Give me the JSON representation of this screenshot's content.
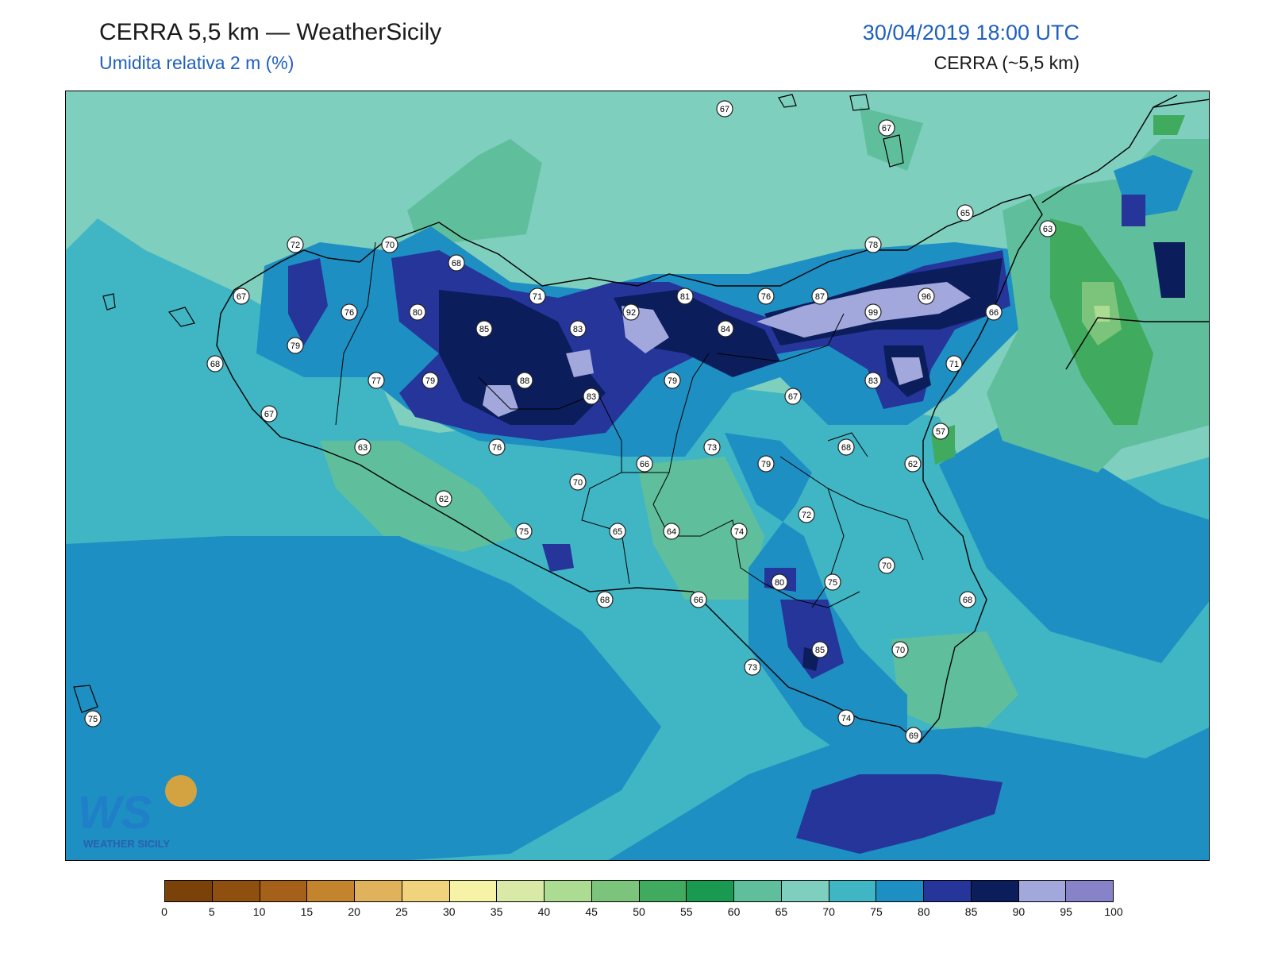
{
  "header": {
    "title": "CERRA 5,5 km — WeatherSicily",
    "subtitle": "Umidita relativa 2 m (%)",
    "datetime": "30/04/2019 18:00 UTC",
    "model": "CERRA (~5,5 km)"
  },
  "logo": {
    "letters": "WS",
    "name": "WEATHER SICILY"
  },
  "colorbar": {
    "ticks": [
      "0",
      "5",
      "10",
      "15",
      "20",
      "25",
      "30",
      "35",
      "40",
      "45",
      "50",
      "55",
      "60",
      "65",
      "70",
      "75",
      "80",
      "85",
      "90",
      "95",
      "100"
    ],
    "colors": [
      "#7a4208",
      "#8f4f0e",
      "#a5601a",
      "#c4832d",
      "#e0b25c",
      "#f0d37c",
      "#f6f3a6",
      "#d8eaa6",
      "#acdb92",
      "#7cc47c",
      "#40aa5e",
      "#1a9950",
      "#5fbf9c",
      "#7ecfbd",
      "#40b5c4",
      "#1e8fc3",
      "#25359a",
      "#0c1d5c",
      "#a2a8dc",
      "#8883c8"
    ]
  },
  "stations": [
    {
      "value": "67",
      "color": "#000"
    },
    {
      "value": "67",
      "color": "#000"
    },
    {
      "value": "65",
      "color": "#000"
    },
    {
      "value": "63",
      "color": "#000"
    },
    {
      "value": "72",
      "color": "#000"
    },
    {
      "value": "70",
      "color": "#000"
    },
    {
      "value": "68",
      "color": "#000"
    },
    {
      "value": "78",
      "color": "#000"
    },
    {
      "value": "67",
      "color": "#000"
    },
    {
      "value": "76",
      "color": "#000"
    },
    {
      "value": "80",
      "color": "#000"
    },
    {
      "value": "71",
      "color": "#000"
    },
    {
      "value": "81",
      "color": "#000"
    },
    {
      "value": "76",
      "color": "#000"
    },
    {
      "value": "87",
      "color": "#000"
    },
    {
      "value": "96",
      "color": "#000"
    },
    {
      "value": "66",
      "color": "#000"
    },
    {
      "value": "92",
      "color": "#000"
    },
    {
      "value": "99",
      "color": "#000"
    },
    {
      "value": "85",
      "color": "#000"
    },
    {
      "value": "83",
      "color": "#000"
    },
    {
      "value": "84",
      "color": "#000"
    },
    {
      "value": "79",
      "color": "#000"
    },
    {
      "value": "68",
      "color": "#000"
    },
    {
      "value": "71",
      "color": "#000"
    },
    {
      "value": "77",
      "color": "#000"
    },
    {
      "value": "79",
      "color": "#000"
    },
    {
      "value": "88",
      "color": "#000"
    },
    {
      "value": "79",
      "color": "#000"
    },
    {
      "value": "83",
      "color": "#000"
    },
    {
      "value": "83",
      "color": "#000"
    },
    {
      "value": "67",
      "color": "#000"
    },
    {
      "value": "67",
      "color": "#000"
    },
    {
      "value": "57",
      "color": "#000"
    },
    {
      "value": "63",
      "color": "#000"
    },
    {
      "value": "76",
      "color": "#000"
    },
    {
      "value": "73",
      "color": "#000"
    },
    {
      "value": "68",
      "color": "#000"
    },
    {
      "value": "66",
      "color": "#000"
    },
    {
      "value": "79",
      "color": "#000"
    },
    {
      "value": "62",
      "color": "#000"
    },
    {
      "value": "70",
      "color": "#000"
    },
    {
      "value": "62",
      "color": "#000"
    },
    {
      "value": "72",
      "color": "#000"
    },
    {
      "value": "75",
      "color": "#000"
    },
    {
      "value": "65",
      "color": "#000"
    },
    {
      "value": "64",
      "color": "#000"
    },
    {
      "value": "74",
      "color": "#000"
    },
    {
      "value": "70",
      "color": "#000"
    },
    {
      "value": "80",
      "color": "#000"
    },
    {
      "value": "75",
      "color": "#000"
    },
    {
      "value": "68",
      "color": "#000"
    },
    {
      "value": "68",
      "color": "#000"
    },
    {
      "value": "66",
      "color": "#000"
    },
    {
      "value": "70",
      "color": "#000"
    },
    {
      "value": "85",
      "color": "#000"
    },
    {
      "value": "73",
      "color": "#000"
    },
    {
      "value": "75",
      "color": "#000"
    },
    {
      "value": "74",
      "color": "#000"
    },
    {
      "value": "69",
      "color": "#000"
    }
  ]
}
